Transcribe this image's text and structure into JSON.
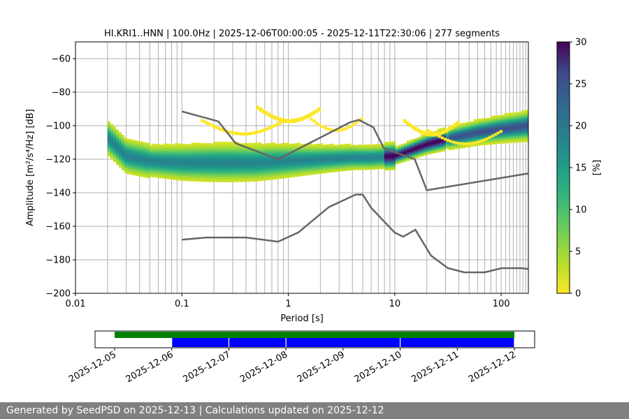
{
  "footer_text": "Generated by SeedPSD on 2025-12-13 | Calculations updated on 2025-12-12",
  "colors": {
    "curve": "#666666",
    "grid": "#b0b0b0",
    "green": "#008000",
    "blue": "#0000ff"
  },
  "chart_data": [
    {
      "type": "heatmap",
      "title": "HI.KRI1..HNN | 100.0Hz | 2025-12-06T00:00:05 - 2025-12-11T22:30:06 | 277 segments",
      "xlabel": "Period [s]",
      "ylabel": "Amplitude [m²/s⁴/Hz] [dB]",
      "xscale": "log",
      "xlim": [
        0.01,
        180
      ],
      "ylim": [
        -200,
        -50
      ],
      "xticks": [
        0.01,
        0.1,
        1,
        10,
        100
      ],
      "xtick_labels": [
        "0.01",
        "0.1",
        "1",
        "10",
        "100"
      ],
      "yticks": [
        -200,
        -180,
        -160,
        -140,
        -120,
        -100,
        -80,
        -60
      ],
      "ytick_labels": [
        "−200",
        "−180",
        "−160",
        "−140",
        "−120",
        "−100",
        "−80",
        "−60"
      ],
      "grid": true,
      "colorbar": {
        "label": "[%]",
        "range": [
          0,
          30
        ],
        "ticks": [
          0,
          5,
          10,
          15,
          20,
          25,
          30
        ],
        "tick_labels": [
          "0",
          "5",
          "10",
          "15",
          "20",
          "25",
          "30"
        ],
        "colormap": "viridis_r"
      },
      "mode_curve": {
        "period": [
          0.02,
          0.03,
          0.05,
          0.1,
          0.2,
          0.5,
          1,
          2,
          4,
          6,
          10,
          15,
          20,
          30,
          60,
          100,
          180
        ],
        "db": [
          -107,
          -118,
          -121,
          -122,
          -122,
          -122,
          -121,
          -120,
          -119,
          -119,
          -118,
          -114,
          -111,
          -108,
          -104,
          -102,
          -100
        ]
      },
      "nlnm": {
        "period": [
          0.1,
          0.17,
          0.4,
          0.8,
          1.24,
          2.4,
          4.3,
          5,
          6,
          10,
          12,
          15.6,
          21.9,
          31.6,
          45,
          70,
          101,
          154,
          180
        ],
        "db": [
          -168,
          -166.7,
          -166.7,
          -169.2,
          -163.7,
          -148.6,
          -141.1,
          -141.1,
          -149,
          -163.8,
          -166.2,
          -162.1,
          -177.5,
          -185,
          -187.5,
          -187.5,
          -185,
          -185,
          -185.5
        ]
      },
      "nhnm": {
        "period": [
          0.1,
          0.22,
          0.32,
          0.8,
          3.8,
          4.6,
          6.3,
          7.9,
          15.4,
          20,
          180
        ],
        "db": [
          -91.5,
          -97.4,
          -110.5,
          -120,
          -98,
          -96.5,
          -101,
          -113.5,
          -120,
          -138.5,
          -128.5
        ]
      },
      "grid_periods": [
        0.02,
        0.03,
        0.04,
        0.05,
        0.06,
        0.07,
        0.08,
        0.09,
        0.1,
        0.2,
        0.3,
        0.4,
        0.5,
        0.6,
        0.7,
        0.8,
        0.9,
        1,
        2,
        3,
        4,
        5,
        6,
        7,
        8,
        9,
        10,
        20,
        30,
        40,
        50,
        60,
        70,
        80,
        90,
        100,
        110,
        120,
        130,
        140,
        150,
        160,
        170,
        180
      ]
    },
    {
      "type": "timeline",
      "xlim": [
        "2025-12-05",
        "2025-12-12T08:00"
      ],
      "xtick_labels": [
        "2025-12-05",
        "2025-12-06",
        "2025-12-07",
        "2025-12-08",
        "2025-12-09",
        "2025-12-10",
        "2025-12-11",
        "2025-12-12"
      ],
      "available_data": {
        "start": "2025-12-05T00:00",
        "end": "2025-12-12T00:00",
        "color": "green"
      },
      "processed_segments": [
        {
          "start": "2025-12-06T00:00",
          "end": "2025-12-07T00:00"
        },
        {
          "start": "2025-12-07T00:00",
          "end": "2025-12-08T00:00"
        },
        {
          "start": "2025-12-08T00:00",
          "end": "2025-12-10T00:00"
        },
        {
          "start": "2025-12-10T00:00",
          "end": "2025-12-12T00:00"
        }
      ]
    }
  ]
}
